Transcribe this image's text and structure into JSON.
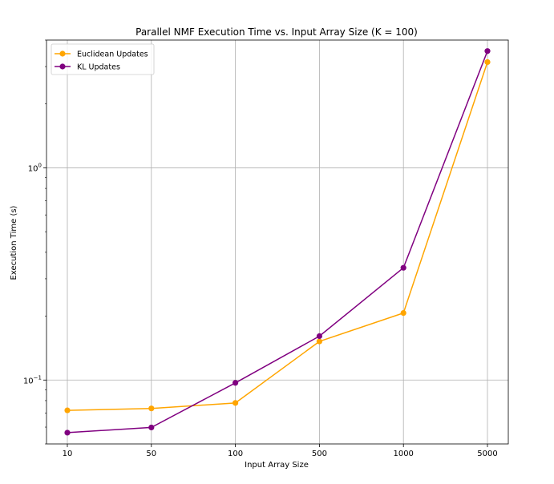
{
  "chart_data": {
    "type": "line",
    "title": "Parallel NMF Execution Time vs. Input Array Size (K = 100)",
    "xlabel": "Input Array Size",
    "ylabel": "Execution Time (s)",
    "categories": [
      "10",
      "50",
      "100",
      "500",
      "1000",
      "5000"
    ],
    "y_scale": "log",
    "ylim": [
      0.05,
      4.0
    ],
    "y_ticks": [
      {
        "value": 1.0,
        "base": "10",
        "exp": "0"
      },
      {
        "value": 0.1,
        "base": "10",
        "exp": "−1"
      }
    ],
    "grid": true,
    "legend_position": "top-left",
    "series": [
      {
        "name": "Euclidean Updates",
        "color": "#FFA500",
        "values": [
          0.072,
          0.0735,
          0.078,
          0.152,
          0.207,
          3.15
        ]
      },
      {
        "name": "KL Updates",
        "color": "#800080",
        "values": [
          0.0565,
          0.0598,
          0.097,
          0.161,
          0.338,
          3.55
        ]
      }
    ]
  }
}
